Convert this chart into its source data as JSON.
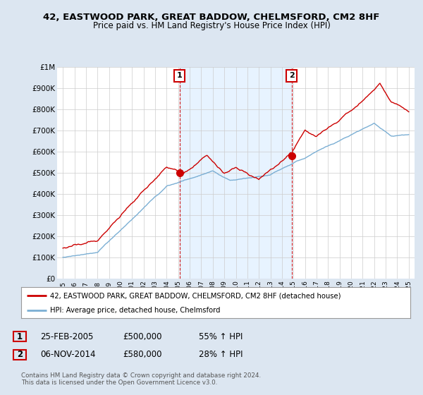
{
  "title": "42, EASTWOOD PARK, GREAT BADDOW, CHELMSFORD, CM2 8HF",
  "subtitle": "Price paid vs. HM Land Registry's House Price Index (HPI)",
  "yticks": [
    0,
    100000,
    200000,
    300000,
    400000,
    500000,
    600000,
    700000,
    800000,
    900000,
    1000000
  ],
  "ytick_labels": [
    "£0",
    "£100K",
    "£200K",
    "£300K",
    "£400K",
    "£500K",
    "£600K",
    "£700K",
    "£800K",
    "£900K",
    "£1M"
  ],
  "xlim_start": 1994.5,
  "xlim_end": 2025.5,
  "ylim_min": 0,
  "ylim_max": 1000000,
  "hpi_color": "#7bafd4",
  "price_color": "#cc0000",
  "vline_color": "#cc0000",
  "shade_color": "#ddeeff",
  "marker1_x": 2005.12,
  "marker1_y": 500000,
  "marker1_label": "1",
  "marker2_x": 2014.84,
  "marker2_y": 580000,
  "marker2_label": "2",
  "legend_line1": "42, EASTWOOD PARK, GREAT BADDOW, CHELMSFORD, CM2 8HF (detached house)",
  "legend_line2": "HPI: Average price, detached house, Chelmsford",
  "table_row1_num": "1",
  "table_row1_date": "25-FEB-2005",
  "table_row1_price": "£500,000",
  "table_row1_hpi": "55% ↑ HPI",
  "table_row2_num": "2",
  "table_row2_date": "06-NOV-2014",
  "table_row2_price": "£580,000",
  "table_row2_hpi": "28% ↑ HPI",
  "footnote": "Contains HM Land Registry data © Crown copyright and database right 2024.\nThis data is licensed under the Open Government Licence v3.0.",
  "background_color": "#dce6f1",
  "plot_bg_color": "#ffffff",
  "xtick_years": [
    1995,
    1996,
    1997,
    1998,
    1999,
    2000,
    2001,
    2002,
    2003,
    2004,
    2005,
    2006,
    2007,
    2008,
    2009,
    2010,
    2011,
    2012,
    2013,
    2014,
    2015,
    2016,
    2017,
    2018,
    2019,
    2020,
    2021,
    2022,
    2023,
    2024,
    2025
  ]
}
